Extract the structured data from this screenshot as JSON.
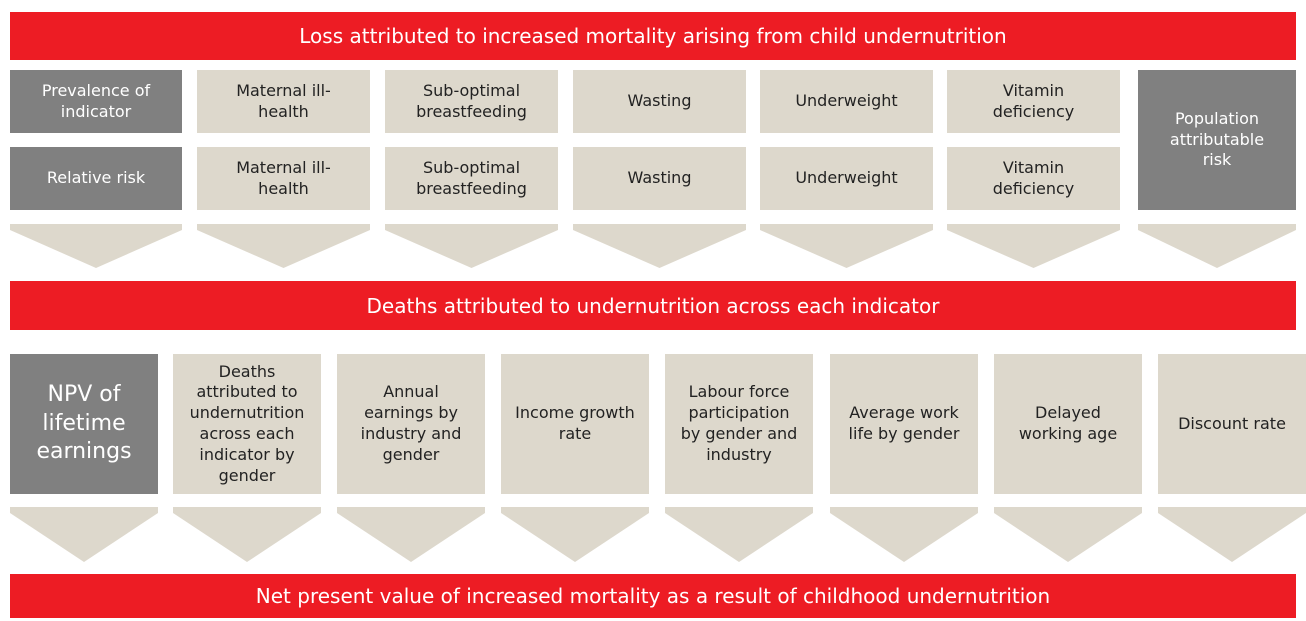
{
  "banners": [
    "Loss attributed to increased mortality arising from child undernutrition",
    "Deaths attributed to undernutrition across each indicator",
    "Net present value of increased mortality as a result of childhood undernutrition"
  ],
  "stage1": {
    "row_labels": [
      "Prevalence of indicator",
      "Relative risk"
    ],
    "indicators": [
      "Maternal ill-health",
      "Sub-optimal breastfeeding",
      "Wasting",
      "Underweight",
      "Vitamin deficiency"
    ],
    "result": "Population attributable risk"
  },
  "stage2": {
    "label": "NPV of lifetime earnings",
    "inputs": [
      "Deaths attributed to undernutrition across each indicator by gender",
      "Annual earnings by industry and gender",
      "Income growth rate",
      "Labour force participation by gender and industry",
      "Average work life by gender",
      "Delayed working age",
      "Discount rate"
    ]
  }
}
